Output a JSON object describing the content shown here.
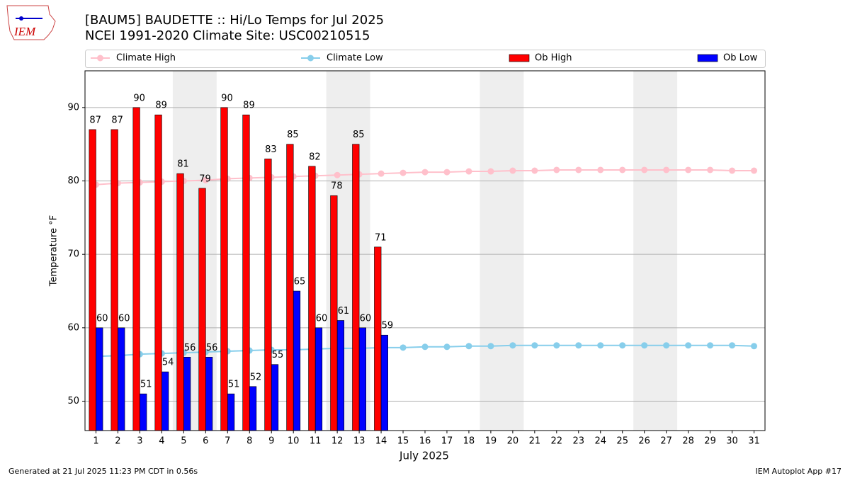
{
  "logo_text": "IEM",
  "chart_data": {
    "type": "bar",
    "title": "[BAUM5] BAUDETTE :: Hi/Lo Temps for Jul 2025",
    "subtitle": "NCEI 1991-2020 Climate Site: USC00210515",
    "x_label": "July 2025",
    "y_label": "Temperature $^\\circ$F",
    "footer_left": "Generated at 21 Jul 2025 11:23 PM CDT in 0.56s",
    "footer_right": "IEM Autoplot App #17",
    "categories": [
      "1",
      "2",
      "3",
      "4",
      "5",
      "6",
      "7",
      "8",
      "9",
      "10",
      "11",
      "12",
      "13",
      "14",
      "15",
      "16",
      "17",
      "18",
      "19",
      "20",
      "21",
      "22",
      "23",
      "24",
      "25",
      "26",
      "27",
      "28",
      "29",
      "30",
      "31"
    ],
    "series": [
      {
        "name": "Climate High",
        "type": "line",
        "color": "#ffc0cb",
        "values": [
          79.5,
          79.7,
          79.8,
          79.9,
          80.0,
          80.1,
          80.3,
          80.4,
          80.5,
          80.6,
          80.7,
          80.8,
          80.9,
          81.0,
          81.1,
          81.2,
          81.2,
          81.3,
          81.3,
          81.4,
          81.4,
          81.5,
          81.5,
          81.5,
          81.5,
          81.5,
          81.5,
          81.5,
          81.5,
          81.4,
          81.4
        ]
      },
      {
        "name": "Climate Low",
        "type": "line",
        "color": "#87ceeb",
        "values": [
          56.1,
          56.2,
          56.4,
          56.5,
          56.6,
          56.7,
          56.8,
          56.9,
          57.0,
          57.0,
          57.1,
          57.2,
          57.2,
          57.3,
          57.3,
          57.4,
          57.4,
          57.5,
          57.5,
          57.6,
          57.6,
          57.6,
          57.6,
          57.6,
          57.6,
          57.6,
          57.6,
          57.6,
          57.6,
          57.6,
          57.5
        ]
      },
      {
        "name": "Ob High",
        "type": "bar",
        "color": "#ff0000",
        "values": [
          87,
          87,
          90,
          89,
          81,
          79,
          90,
          89,
          83,
          85,
          82,
          78,
          85,
          71,
          null,
          null,
          null,
          null,
          null,
          null,
          null,
          null,
          null,
          null,
          null,
          null,
          null,
          null,
          null,
          null,
          null
        ]
      },
      {
        "name": "Ob Low",
        "type": "bar",
        "color": "#0000ff",
        "values": [
          60,
          60,
          51,
          54,
          56,
          56,
          51,
          52,
          55,
          65,
          60,
          61,
          60,
          59,
          null,
          null,
          null,
          null,
          null,
          null,
          null,
          null,
          null,
          null,
          null,
          null,
          null,
          null,
          null,
          null,
          null
        ]
      }
    ],
    "ylim": [
      46,
      95
    ],
    "yticks": [
      50,
      60,
      70,
      80,
      90
    ],
    "grid": true
  }
}
